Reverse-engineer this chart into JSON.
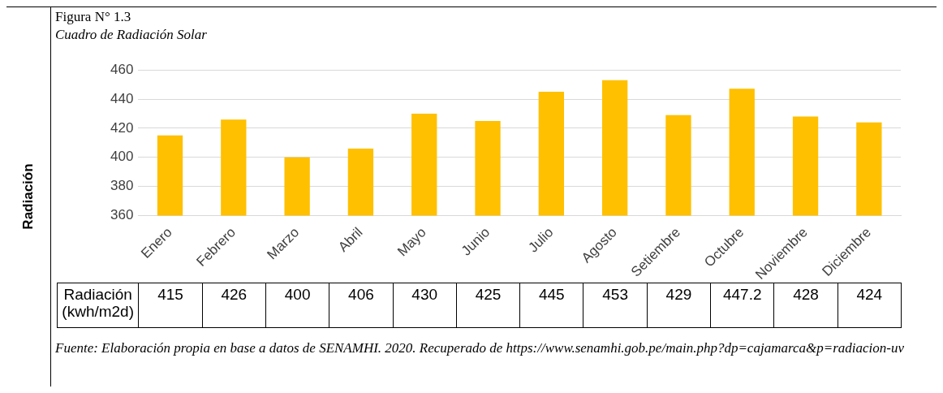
{
  "chart_data": {
    "type": "bar",
    "title": "Figura N° 1.3",
    "subtitle": "Cuadro de Radiación Solar",
    "categories": [
      "Enero",
      "Febrero",
      "Marzo",
      "Abril",
      "Mayo",
      "Junio",
      "Julio",
      "Agosto",
      "Setiembre",
      "Octubre",
      "Noviembre",
      "Diciembre"
    ],
    "values": [
      415,
      426,
      400,
      406,
      430,
      425,
      445,
      453,
      429,
      447.2,
      428,
      424
    ],
    "color": "#ffc000",
    "ylim": [
      360,
      460
    ],
    "yticks": [
      360,
      380,
      400,
      420,
      440,
      460
    ],
    "grid": "y",
    "data_labels": true,
    "annotations": [
      "Radiación (kwh/m2d)",
      "Fuente: Elaboración propia en base a datos de SENAMHI. 2020. Recuperado de https://www.senamhi.gob.pe/main.php?dp=cajamarca&p=radiacion-uv",
      "Radiación"
    ]
  }
}
